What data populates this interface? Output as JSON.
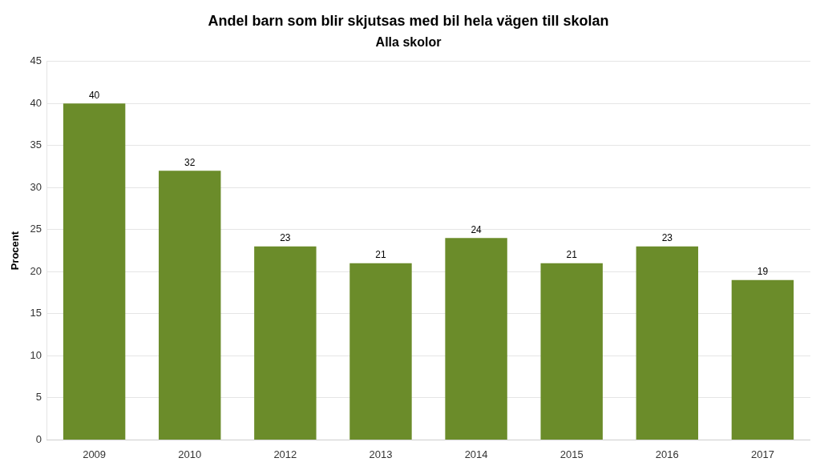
{
  "chart_data": {
    "type": "bar",
    "title": "Andel barn som blir skjutsas med bil hela vägen till skolan",
    "subtitle": "Alla skolor",
    "ylabel": "Procent",
    "categories": [
      "2009",
      "2010",
      "2012",
      "2013",
      "2014",
      "2015",
      "2016",
      "2017"
    ],
    "values": [
      40,
      32,
      23,
      21,
      24,
      21,
      23,
      19
    ],
    "color": "#6b8c2a",
    "ylim": [
      0,
      45
    ],
    "yticks": [
      0,
      5,
      10,
      15,
      20,
      25,
      30,
      35,
      40,
      45
    ],
    "grid": true,
    "data_labels": true
  }
}
